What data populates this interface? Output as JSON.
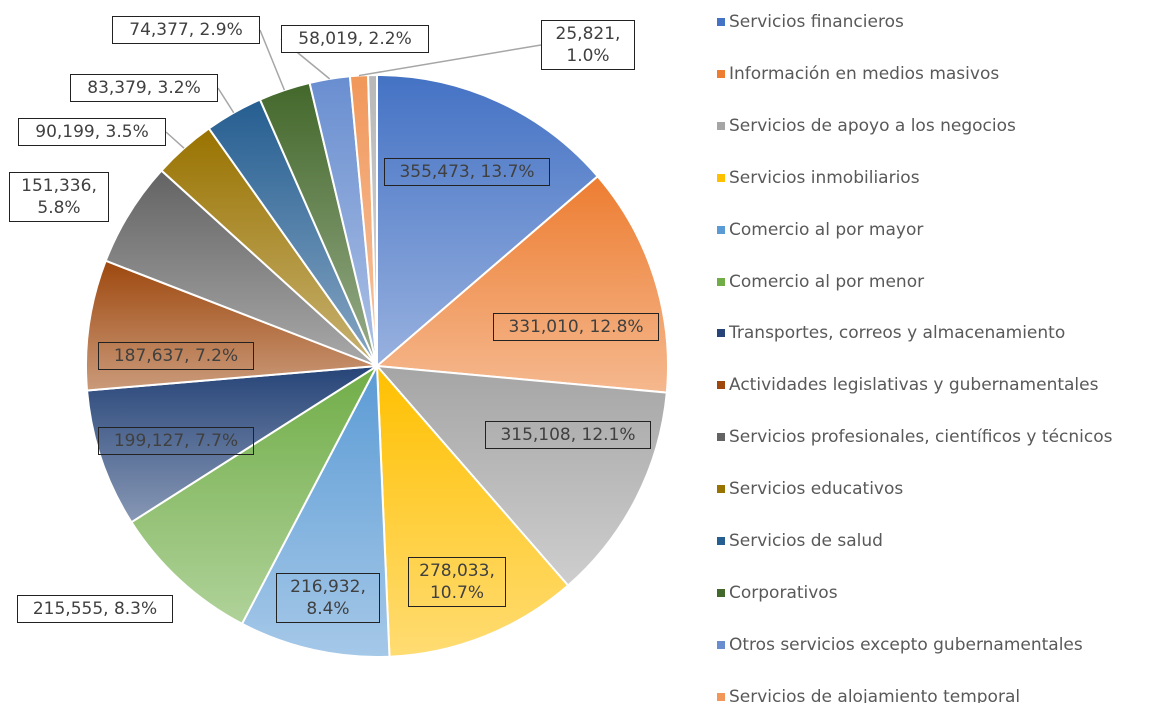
{
  "chart_data": {
    "type": "pie",
    "categories": [
      "Servicios financieros",
      "Información en medios masivos",
      "Servicios de apoyo a los negocios",
      "Servicios inmobiliarios",
      "Comercio al por mayor",
      "Comercio al por menor",
      "Transportes, correos y almacenamiento",
      "Actividades legislativas y gubernamentales",
      "Servicios profesionales, científicos y técnicos",
      "Servicios educativos",
      "Servicios de salud",
      "Corporativos",
      "Otros servicios excepto gubernamentales",
      "Servicios de alojamiento temporal",
      null
    ],
    "values": [
      355473,
      331010,
      315108,
      278033,
      216932,
      215555,
      199127,
      187637,
      151336,
      90199,
      83379,
      74377,
      58019,
      25821,
      12700
    ],
    "value_labels": [
      "355,473, 13.7%",
      "331,010, 12.8%",
      "315,108, 12.1%",
      "278,033, 10.7%",
      "216,932, 8.4%",
      "215,555, 8.3%",
      "199,127, 7.7%",
      "187,637, 7.2%",
      "151,336, 5.8%",
      "90,199, 3.5%",
      "83,379, 3.2%",
      "74,377, 2.9%",
      "58,019, 2.2%",
      "25,821, 1.0%",
      null
    ],
    "colors": [
      "#4472c4",
      "#ed7d31",
      "#a5a5a5",
      "#ffc000",
      "#5b9bd5",
      "#70ad47",
      "#264478",
      "#9e480e",
      "#636363",
      "#997300",
      "#255e91",
      "#43682b",
      "#698ed0",
      "#f1975a",
      "#b7b7b7"
    ],
    "legend": "right"
  }
}
